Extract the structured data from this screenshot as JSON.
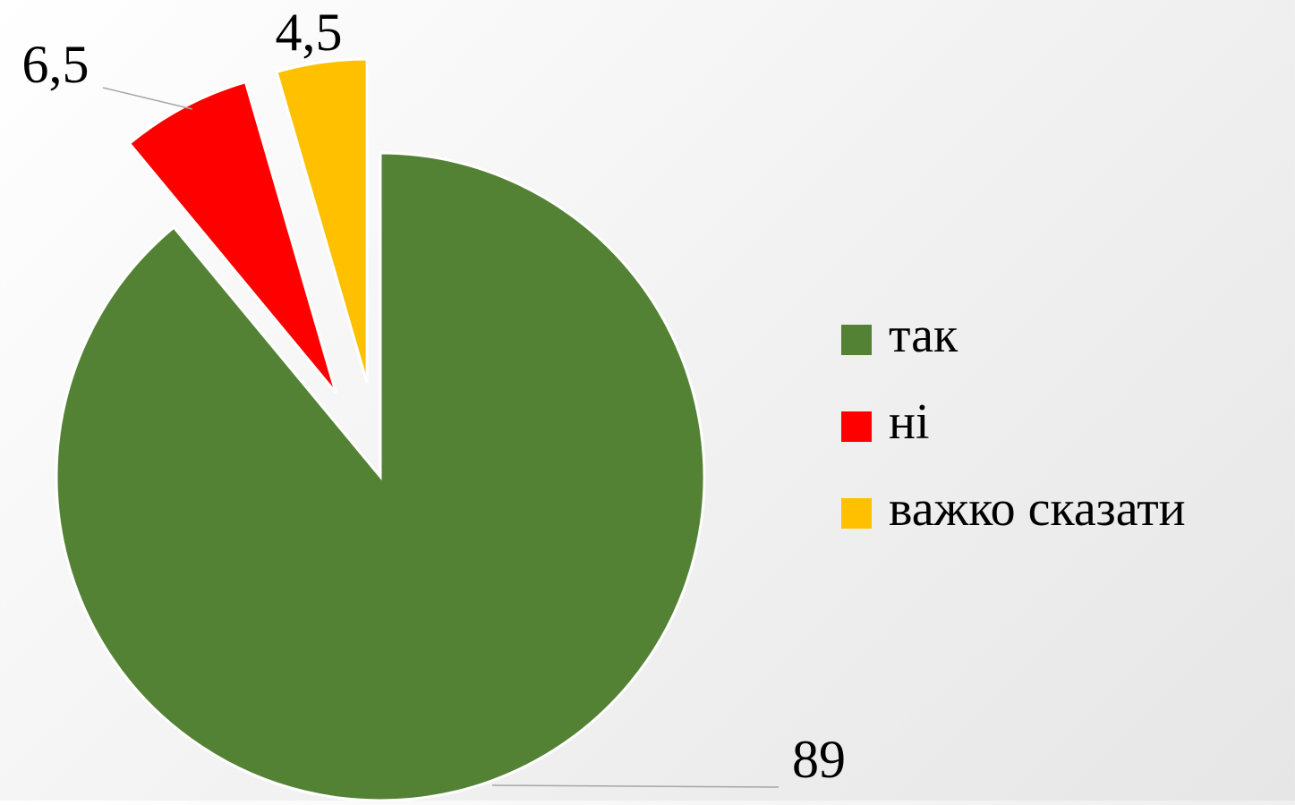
{
  "chart_data": {
    "type": "pie",
    "categories": [
      "так",
      "ні",
      "важко сказати"
    ],
    "values": [
      89,
      6.5,
      4.5
    ],
    "value_labels": [
      "89",
      "6,5",
      "4,5"
    ],
    "colors": [
      "#548235",
      "#ff0000",
      "#ffc000"
    ],
    "legend": "right"
  }
}
